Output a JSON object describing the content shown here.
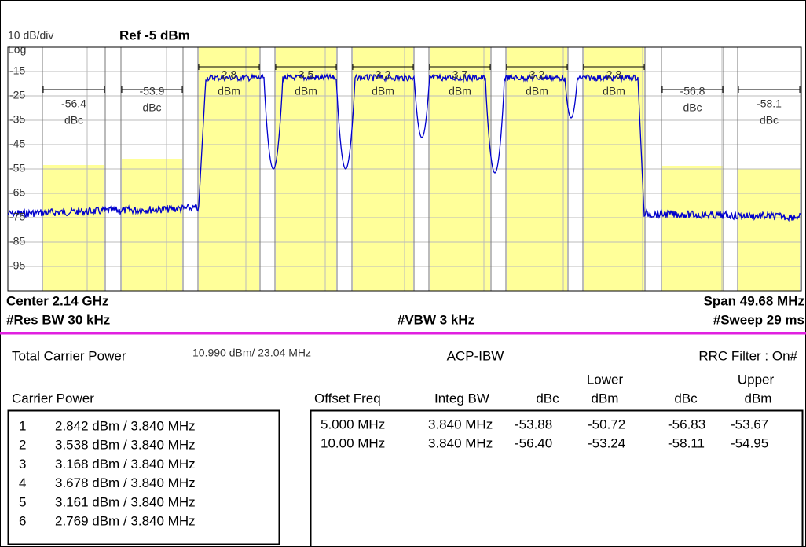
{
  "header": {
    "scale": "10 dB/div",
    "ref": "Ref -5 dBm",
    "mode": "Log"
  },
  "y_axis_labels": [
    "-15",
    "-25",
    "-35",
    "-45",
    "-55",
    "-65",
    "-75",
    "-85",
    "-95"
  ],
  "channel_labels": [
    {
      "value": "-56.4",
      "unit": "dBc"
    },
    {
      "value": "-53.9",
      "unit": "dBc"
    },
    {
      "value": "2.8",
      "unit": "dBm"
    },
    {
      "value": "3.5",
      "unit": "dBm"
    },
    {
      "value": "3.2",
      "unit": "dBm"
    },
    {
      "value": "3.7",
      "unit": "dBm"
    },
    {
      "value": "3.2",
      "unit": "dBm"
    },
    {
      "value": "2.8",
      "unit": "dBm"
    },
    {
      "value": "-56.8",
      "unit": "dBc"
    },
    {
      "value": "-58.1",
      "unit": "dBc"
    }
  ],
  "footer": {
    "center": "Center 2.14 GHz",
    "res_bw": "#Res BW 30 kHz",
    "vbw": "#VBW 3 kHz",
    "span": "Span 49.68 MHz",
    "sweep": "#Sweep 29 ms"
  },
  "summary": {
    "total_label": "Total Carrier Power",
    "total_value": "10.990 dBm/ 23.04 MHz",
    "measurement": "ACP-IBW",
    "filter": "RRC Filter : On#"
  },
  "table": {
    "carrier_header": "Carrier Power",
    "lower": "Lower",
    "upper": "Upper",
    "columns": [
      "Offset Freq",
      "Integ BW",
      "dBc",
      "dBm",
      "dBc",
      "dBm"
    ],
    "carriers": [
      {
        "index": "1",
        "power": "2.842 dBm / 3.840 MHz"
      },
      {
        "index": "2",
        "power": "3.538 dBm / 3.840 MHz"
      },
      {
        "index": "3",
        "power": "3.168 dBm / 3.840 MHz"
      },
      {
        "index": "4",
        "power": "3.678 dBm / 3.840 MHz"
      },
      {
        "index": "5",
        "power": "3.161 dBm / 3.840 MHz"
      },
      {
        "index": "6",
        "power": "2.769 dBm / 3.840 MHz"
      }
    ],
    "offsets": [
      [
        "5.000 MHz",
        "3.840 MHz",
        "-53.88",
        "-50.72",
        "-56.83",
        "-53.67"
      ],
      [
        "10.00 MHz",
        "3.840 MHz",
        "-56.40",
        "-53.24",
        "-58.11",
        "-54.95"
      ]
    ]
  }
}
